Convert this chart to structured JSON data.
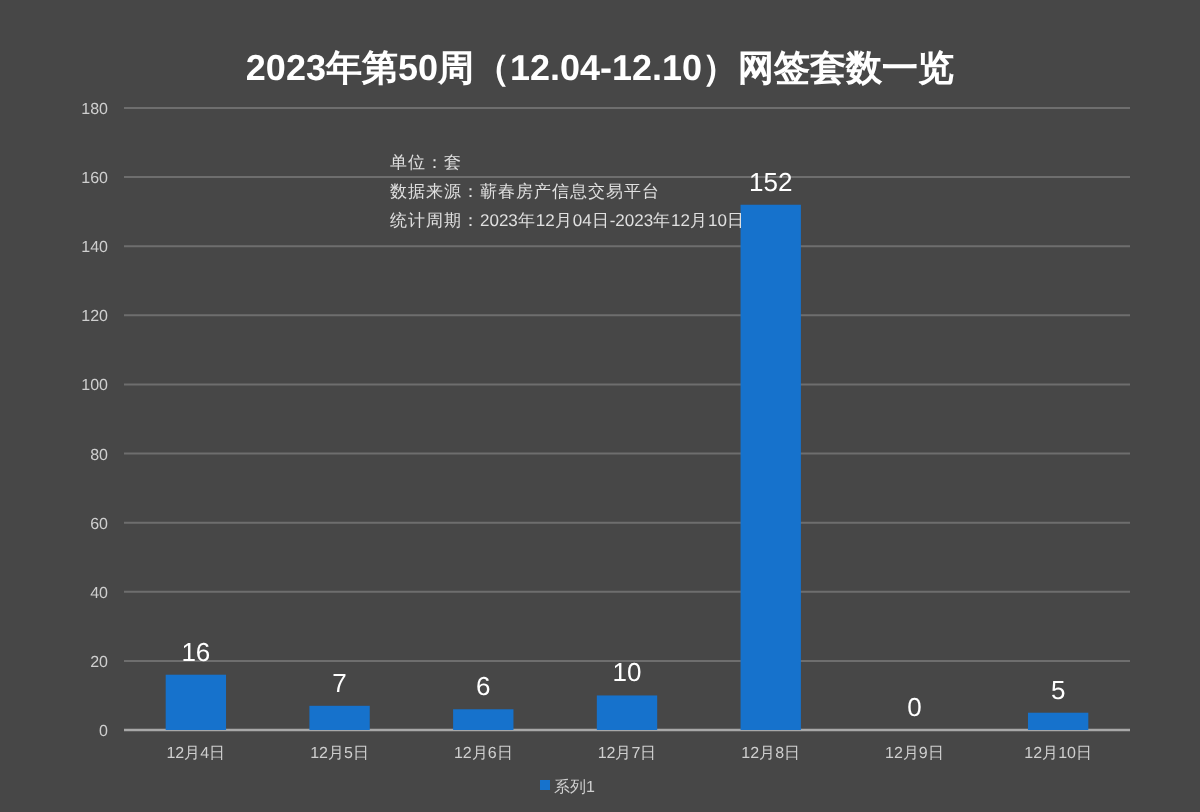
{
  "chart_data": {
    "type": "bar",
    "title": "2023年第50周（12.04-12.10）网签套数一览",
    "categories": [
      "12月4日",
      "12月5日",
      "12月6日",
      "12月7日",
      "12月8日",
      "12月9日",
      "12月10日"
    ],
    "series": [
      {
        "name": "系列1",
        "color": "#1672cc",
        "values": [
          16,
          7,
          6,
          10,
          152,
          0,
          5
        ]
      }
    ],
    "ylim": [
      0,
      180
    ],
    "yticks": [
      0,
      20,
      40,
      60,
      80,
      100,
      120,
      140,
      160,
      180
    ],
    "grid": "y",
    "legend": "bottom",
    "data_labels": true,
    "annotations": [
      "单位：套",
      "数据来源：蕲春房产信息交易平台",
      "统计周期：2023年12月04日-2023年12月10日"
    ]
  }
}
